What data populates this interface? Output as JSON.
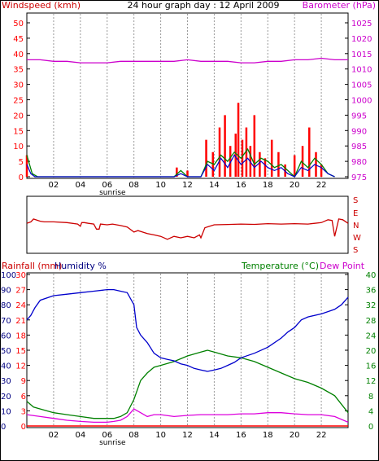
{
  "header": {
    "wind_label": "Windspeed (kmh)",
    "title": "24 hour graph day : 12 April 2009",
    "baro_label": "Barometer (hPa)"
  },
  "weather_labels": {
    "rain_label": "Rainfall (mm)",
    "humidity_label": "Humidity %",
    "temp_label": "Temperature (°C)",
    "dewpoint_label": "Dew Point"
  },
  "colors": {
    "wind_red": "#ff0000",
    "wind_green": "#008000",
    "wind_blue": "#0000cc",
    "baro": "#cc00cc",
    "direction": "#cc0000",
    "humidity": "#0000cc",
    "temperature": "#008000",
    "dewpoint": "#dd00dd",
    "rain": "#ff0000",
    "grid": "#9a9a9a"
  },
  "chart_data": [
    {
      "type": "line",
      "name": "wind-barometer",
      "xticks": [
        "02",
        "04",
        "06",
        "08",
        "10",
        "12",
        "14",
        "16",
        "18",
        "20",
        "22"
      ],
      "sunrise_label": "sunrise",
      "sunrise_hour": 6.4,
      "xlim": [
        0,
        24
      ],
      "ylim_left": [
        0,
        50
      ],
      "yticks_left": [
        0,
        5,
        10,
        15,
        20,
        25,
        30,
        35,
        40,
        45,
        50
      ],
      "ylim_right": [
        975,
        1025
      ],
      "yticks_right": [
        975,
        980,
        985,
        990,
        995,
        1000,
        1005,
        1010,
        1015,
        1020,
        1025
      ],
      "barometer": {
        "x": [
          0,
          1,
          2,
          3,
          4,
          5,
          6,
          7,
          8,
          9,
          10,
          11,
          12,
          13,
          14,
          15,
          16,
          17,
          18,
          19,
          20,
          21,
          22,
          23,
          24
        ],
        "y": [
          1013,
          1013,
          1012.5,
          1012.5,
          1012,
          1012,
          1012,
          1012.5,
          1012.5,
          1012.5,
          1012.5,
          1012.5,
          1013,
          1012.5,
          1012.5,
          1012.5,
          1012,
          1012,
          1012.5,
          1012.5,
          1013,
          1013,
          1013.5,
          1013,
          1013
        ]
      },
      "gust_bars": {
        "x": [
          0,
          11.2,
          12,
          13.4,
          13.9,
          14.4,
          14.8,
          15.2,
          15.6,
          15.8,
          16.1,
          16.4,
          16.7,
          17.0,
          17.4,
          17.8,
          18.3,
          18.8,
          19.3,
          20.0,
          20.6,
          21.1,
          21.6,
          22.0
        ],
        "y": [
          7,
          3,
          2,
          12,
          8,
          16,
          20,
          10,
          14,
          24,
          12,
          16,
          10,
          20,
          8,
          6,
          12,
          8,
          4,
          7,
          10,
          16,
          8,
          4
        ]
      },
      "wind_speed": {
        "x": [
          0,
          0.4,
          0.8,
          11,
          11.5,
          12,
          13,
          13.5,
          14,
          14.5,
          15,
          15.5,
          16,
          16.5,
          17,
          17.5,
          18,
          18.5,
          19,
          19.5,
          20,
          20.5,
          21,
          21.5,
          22,
          22.5,
          23
        ],
        "y": [
          7,
          1,
          0,
          0,
          2,
          0,
          0,
          5,
          4,
          7,
          5,
          8,
          6,
          9,
          4,
          6,
          5,
          3,
          4,
          2,
          0,
          5,
          3,
          6,
          4,
          1,
          0
        ]
      },
      "wind_avg": {
        "x": [
          0,
          0.3,
          0.6,
          11,
          11.5,
          12,
          13,
          13.5,
          14,
          14.5,
          15,
          15.5,
          16,
          16.5,
          17,
          17.5,
          18,
          18.5,
          19,
          19.5,
          20,
          20.5,
          21,
          21.5,
          22,
          22.5,
          23
        ],
        "y": [
          4,
          1,
          0,
          0,
          1,
          0,
          0,
          4,
          2,
          6,
          3,
          7,
          4,
          6,
          3,
          5,
          3,
          2,
          3,
          1,
          0,
          3,
          2,
          4,
          3,
          1,
          0
        ]
      }
    },
    {
      "type": "line",
      "name": "wind-direction",
      "yticks": [
        "S",
        "E",
        "N",
        "W",
        "S"
      ],
      "xlim": [
        0,
        24
      ],
      "ylim": [
        0,
        360
      ],
      "x": [
        0,
        0.3,
        0.5,
        1,
        1.3,
        2,
        3,
        3.8,
        4,
        4.1,
        4.3,
        4.6,
        5,
        5.2,
        5.4,
        5.5,
        6,
        6.4,
        7,
        7.5,
        8,
        8.3,
        9,
        9.5,
        10,
        10.5,
        11,
        11.5,
        12,
        12.5,
        12.9,
        13,
        13.3,
        14,
        15,
        16,
        17,
        18,
        19,
        20,
        21,
        21.5,
        22,
        22.5,
        22.8,
        23,
        23.3,
        23.6,
        24
      ],
      "y": [
        190,
        200,
        220,
        205,
        200,
        200,
        195,
        185,
        170,
        195,
        195,
        190,
        185,
        150,
        150,
        185,
        180,
        185,
        175,
        165,
        130,
        140,
        120,
        110,
        100,
        80,
        100,
        90,
        100,
        90,
        110,
        90,
        160,
        180,
        182,
        185,
        183,
        188,
        185,
        188,
        185,
        190,
        195,
        215,
        210,
        100,
        220,
        215,
        190
      ]
    },
    {
      "type": "line",
      "name": "weather",
      "xticks": [
        "02",
        "04",
        "06",
        "08",
        "10",
        "12",
        "14",
        "16",
        "18",
        "20",
        "22"
      ],
      "sunrise_label": "sunrise",
      "xlim": [
        0,
        24
      ],
      "rain": {
        "ylim": [
          0,
          30
        ],
        "yticks": [
          0,
          3,
          6,
          9,
          12,
          15,
          18,
          21,
          24,
          27,
          30
        ],
        "x": [
          0,
          24
        ],
        "y": [
          0,
          0
        ]
      },
      "humidity": {
        "ylim": [
          0,
          100
        ],
        "yticks": [
          0,
          10,
          20,
          30,
          40,
          50,
          60,
          70,
          80,
          90,
          100
        ],
        "x": [
          0,
          0.3,
          0.6,
          1,
          2,
          3,
          4,
          5,
          6,
          6.5,
          7,
          7.5,
          8,
          8.2,
          8.5,
          9,
          9.5,
          10,
          10.5,
          11,
          11.5,
          12,
          12.5,
          13,
          13.5,
          14,
          14.5,
          15,
          15.5,
          16,
          17,
          18,
          19,
          19.5,
          20,
          20.5,
          21,
          22,
          23,
          23.5,
          24
        ],
        "y": [
          70,
          73,
          78,
          83,
          86,
          87,
          88,
          89,
          90,
          90,
          89,
          88,
          80,
          65,
          60,
          55,
          48,
          45,
          44,
          43,
          41,
          40,
          38,
          37,
          36,
          37,
          38,
          40,
          42,
          45,
          48,
          52,
          58,
          62,
          65,
          70,
          72,
          74,
          77,
          80,
          85
        ]
      },
      "temperature": {
        "ylim": [
          0,
          40
        ],
        "yticks": [
          0,
          4,
          8,
          12,
          16,
          20,
          24,
          28,
          32,
          36,
          40
        ],
        "x": [
          0,
          0.5,
          1,
          2,
          3,
          4,
          5,
          6,
          6.5,
          7,
          7.5,
          8,
          8.5,
          9,
          9.5,
          10,
          11,
          12,
          13,
          13.5,
          14,
          15,
          16,
          17,
          18,
          19,
          20,
          21,
          22,
          23,
          24
        ],
        "y": [
          6.5,
          5,
          4.5,
          3.5,
          3,
          2.5,
          2,
          2,
          2,
          2.5,
          3.5,
          7,
          12,
          14,
          15.5,
          16,
          17,
          18.5,
          19.5,
          20,
          19.5,
          18.5,
          18,
          17,
          15.5,
          14,
          12.5,
          11.5,
          10,
          8,
          3.5
        ]
      },
      "dewpoint": {
        "x": [
          0,
          1,
          2,
          3,
          4,
          5,
          6,
          6.5,
          7,
          7.5,
          8,
          8.5,
          9,
          9.5,
          10,
          11,
          12,
          13,
          14,
          15,
          16,
          17,
          18,
          19,
          20,
          21,
          22,
          23,
          24
        ],
        "y": [
          3,
          2.5,
          2,
          1.5,
          1.2,
          1,
          1,
          1.2,
          1.5,
          2.5,
          4.5,
          3.5,
          2.5,
          3,
          3,
          2.5,
          2.8,
          3,
          3,
          3,
          3.2,
          3.2,
          3.5,
          3.5,
          3.2,
          3,
          3,
          2.5,
          1
        ]
      }
    }
  ]
}
